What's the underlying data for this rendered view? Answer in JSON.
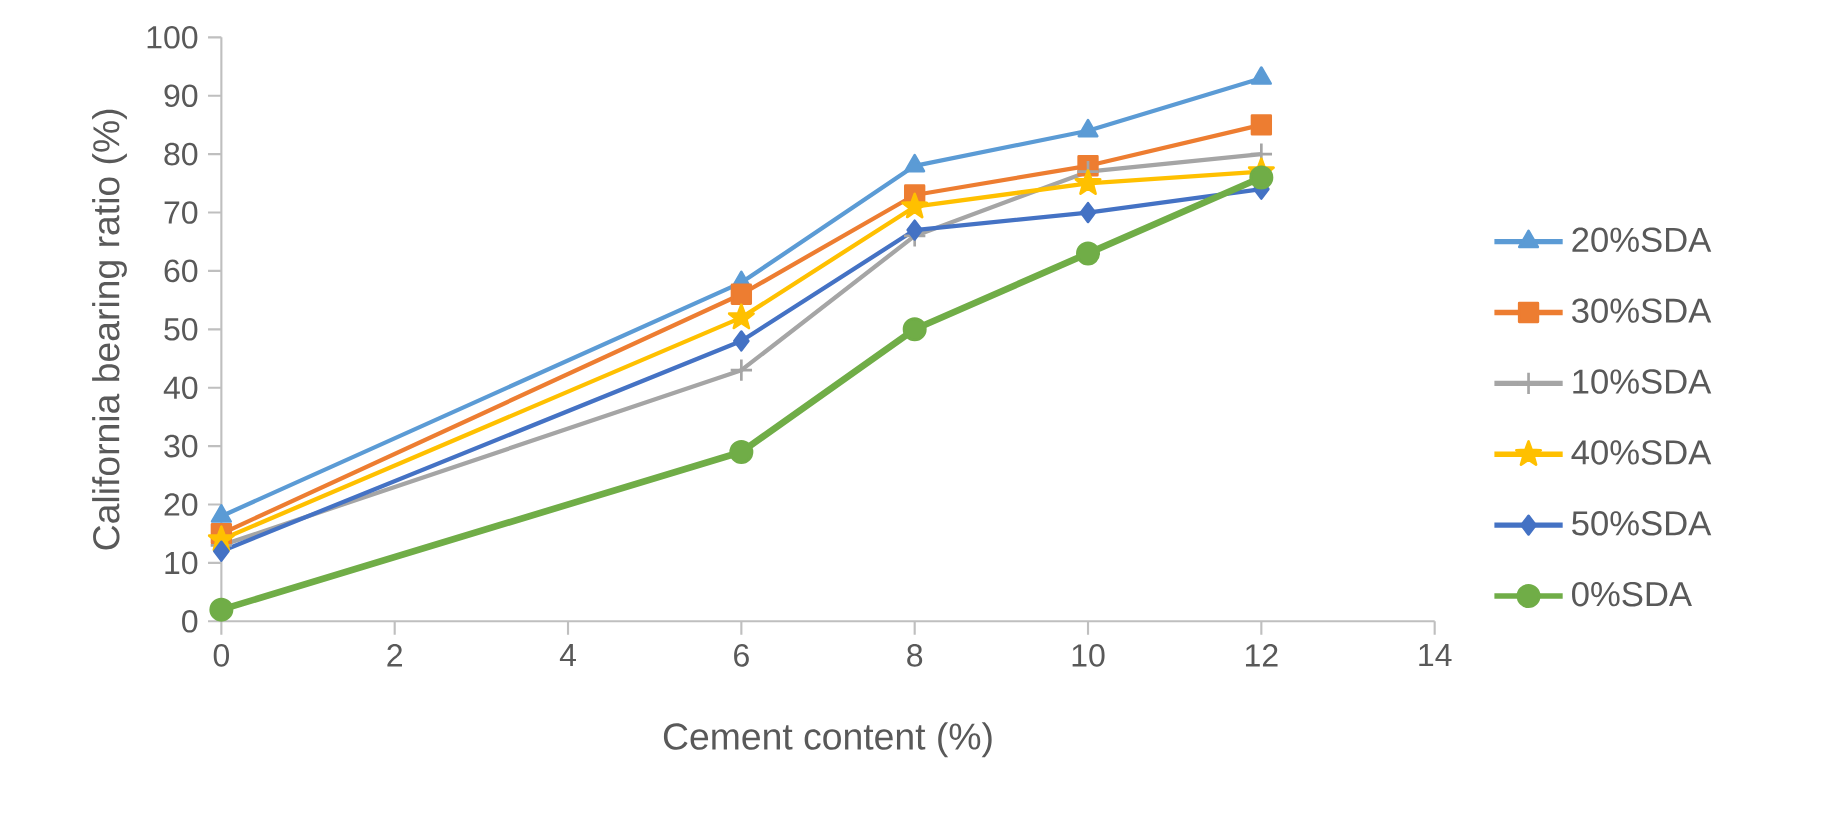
{
  "chart_data": {
    "type": "line",
    "xlabel": "Cement content (%)",
    "ylabel": "California bearing ratio (%)",
    "x": [
      0,
      6,
      8,
      10,
      12
    ],
    "xlim": [
      0,
      14
    ],
    "xticks": [
      0,
      2,
      4,
      6,
      8,
      10,
      12,
      14
    ],
    "ylim": [
      0,
      100
    ],
    "yticks": [
      0,
      10,
      20,
      30,
      40,
      50,
      60,
      70,
      80,
      90,
      100
    ],
    "grid": false,
    "legend": "right",
    "series": [
      {
        "name": "20%SDA",
        "color": "#5b9bd5",
        "marker": "triangle",
        "values": [
          18,
          58,
          78,
          84,
          93
        ]
      },
      {
        "name": "30%SDA",
        "color": "#ed7d31",
        "marker": "square",
        "values": [
          15,
          56,
          73,
          78,
          85
        ]
      },
      {
        "name": "10%SDA",
        "color": "#a5a5a5",
        "marker": "cross",
        "values": [
          13,
          43,
          66,
          77,
          80
        ]
      },
      {
        "name": "40%SDA",
        "color": "#ffc000",
        "marker": "star",
        "values": [
          14,
          52,
          71,
          75,
          77
        ]
      },
      {
        "name": "50%SDA",
        "color": "#4472c4",
        "marker": "diamond",
        "values": [
          12,
          48,
          67,
          70,
          74
        ]
      },
      {
        "name": "0%SDA",
        "color": "#70ad47",
        "marker": "circle",
        "values": [
          2,
          29,
          50,
          63,
          76
        ]
      }
    ]
  }
}
